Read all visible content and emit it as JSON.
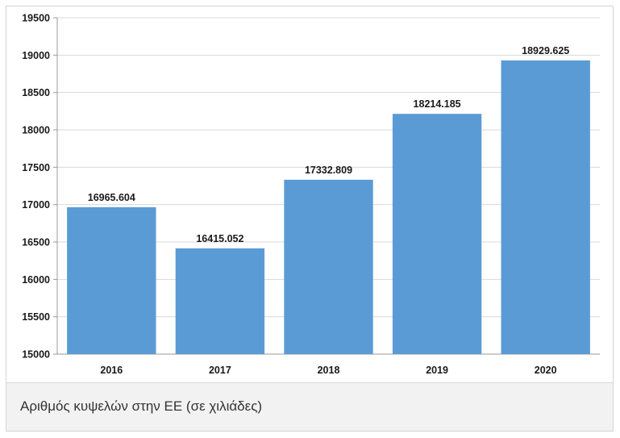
{
  "chart_data": {
    "type": "bar",
    "categories": [
      "2016",
      "2017",
      "2018",
      "2019",
      "2020"
    ],
    "values": [
      16965.604,
      16415.052,
      17332.809,
      18214.185,
      18929.625
    ],
    "value_labels": [
      "16965.604",
      "16415.052",
      "17332.809",
      "18214.185",
      "18929.625"
    ],
    "ylim": [
      15000,
      19500
    ],
    "yticks": [
      15000,
      15500,
      16000,
      16500,
      17000,
      17500,
      18000,
      18500,
      19000,
      19500
    ],
    "grid": true,
    "bar_color": "#5b9bd5",
    "title": "",
    "xlabel": "",
    "ylabel": ""
  },
  "caption": "Αριθμός κυψελών στην ΕΕ (σε χιλιάδες)"
}
